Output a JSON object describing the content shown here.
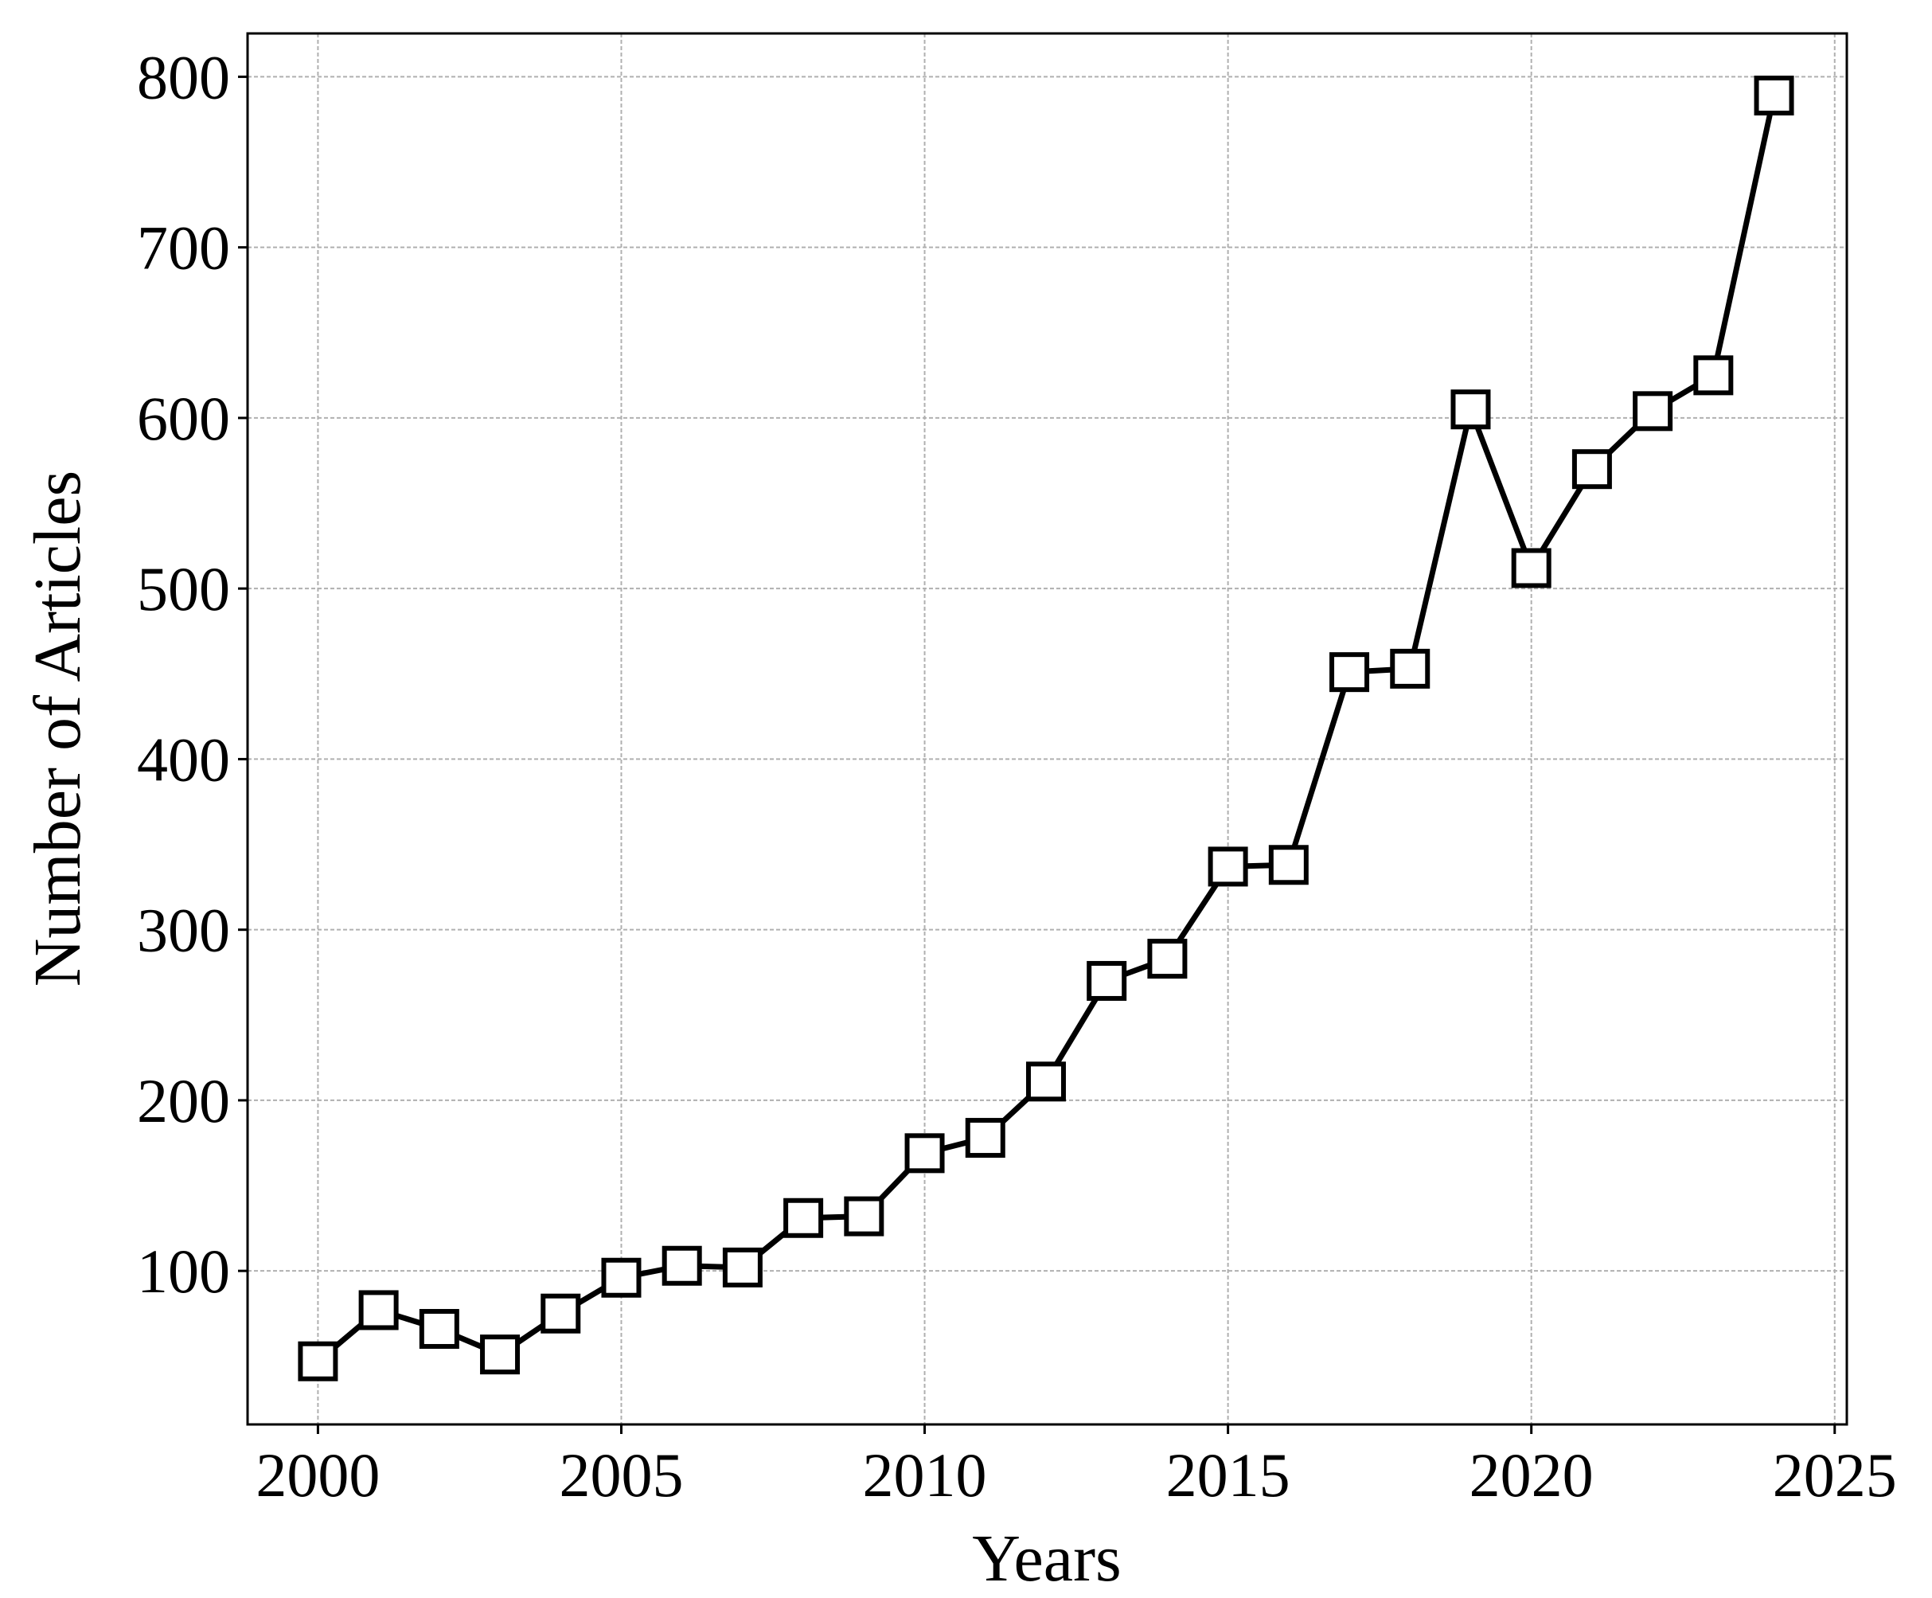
{
  "chart_data": {
    "type": "line",
    "x_label": "Years",
    "y_label": "Number of Articles",
    "x": [
      2000,
      2001,
      2002,
      2003,
      2004,
      2005,
      2006,
      2007,
      2008,
      2009,
      2010,
      2011,
      2012,
      2013,
      2014,
      2015,
      2016,
      2017,
      2018,
      2019,
      2020,
      2021,
      2022,
      2023,
      2024
    ],
    "series": [
      {
        "color": "#000000",
        "marker": "square",
        "values": [
          47,
          77,
          66,
          51,
          75,
          96,
          103,
          102,
          131,
          132,
          169,
          178,
          211,
          270,
          283,
          337,
          338,
          451,
          453,
          605,
          512,
          570,
          604,
          625,
          789
        ]
      }
    ],
    "xlim": [
      1998.84,
      2025.2
    ],
    "ylim": [
      10,
      825.4
    ],
    "xticks": [
      2000,
      2005,
      2010,
      2015,
      2020,
      2025
    ],
    "yticks": [
      100,
      200,
      300,
      400,
      500,
      600,
      700,
      800
    ],
    "grid": true
  }
}
